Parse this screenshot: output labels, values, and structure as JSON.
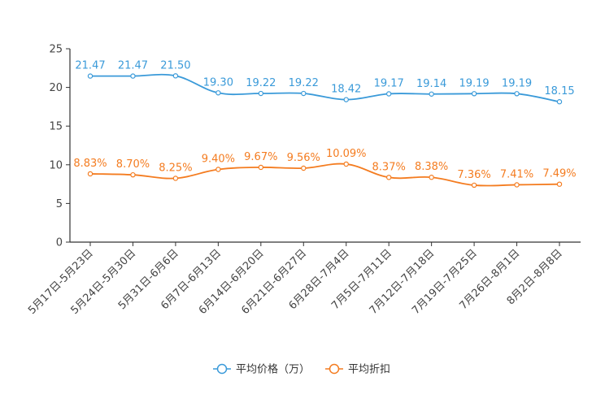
{
  "chart_data": {
    "type": "line",
    "title": "",
    "xlabel": "",
    "ylabel": "",
    "ylim": [
      0,
      25
    ],
    "yticks": [
      0,
      5,
      10,
      15,
      20,
      25
    ],
    "grid": false,
    "legend_position": "bottom-center",
    "categories": [
      "5月17日-5月23日",
      "5月24日-5月30日",
      "5月31日-6月6日",
      "6月7日-6月13日",
      "6月14日-6月20日",
      "6月21日-6月27日",
      "6月28日-7月4日",
      "7月5日-7月11日",
      "7月12日-7月18日",
      "7月19日-7月25日",
      "7月26日-8月1日",
      "8月2日-8月8日"
    ],
    "series": [
      {
        "name": "平均价格（万）",
        "color": "#3a9ad9",
        "values": [
          21.47,
          21.47,
          21.5,
          19.3,
          19.22,
          19.22,
          18.42,
          19.17,
          19.14,
          19.19,
          19.19,
          18.15
        ],
        "labels": [
          "21.47",
          "21.47",
          "21.50",
          "19.30",
          "19.22",
          "19.22",
          "18.42",
          "19.17",
          "19.14",
          "19.19",
          "19.19",
          "18.15"
        ]
      },
      {
        "name": "平均折扣",
        "color": "#f47c20",
        "values": [
          8.83,
          8.7,
          8.25,
          9.4,
          9.67,
          9.56,
          10.09,
          8.37,
          8.38,
          7.36,
          7.41,
          7.49
        ],
        "labels": [
          "8.83%",
          "8.70%",
          "8.25%",
          "9.40%",
          "9.67%",
          "9.56%",
          "10.09%",
          "8.37%",
          "8.38%",
          "7.36%",
          "7.41%",
          "7.49%"
        ]
      }
    ]
  }
}
